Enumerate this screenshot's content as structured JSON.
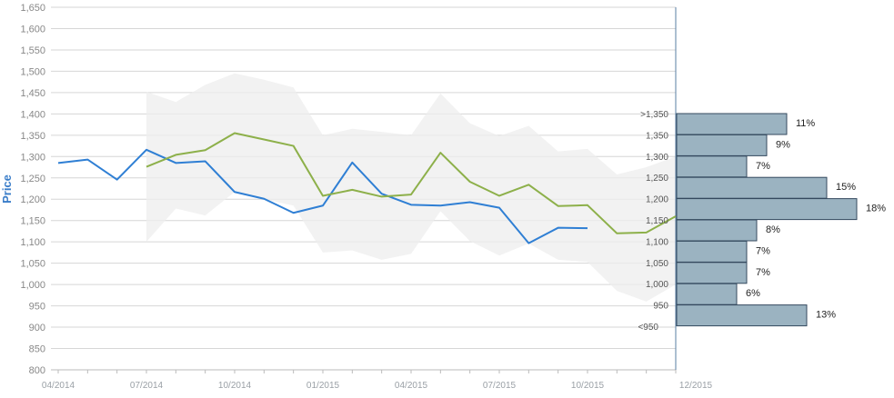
{
  "chart_data": {
    "type": "line",
    "ylabel": "Price",
    "ylim": [
      800,
      1650
    ],
    "y_ticks": [
      "800",
      "850",
      "900",
      "950",
      "1,000",
      "1,050",
      "1,100",
      "1,150",
      "1,200",
      "1,250",
      "1,300",
      "1,350",
      "1,400",
      "1,450",
      "1,500",
      "1,550",
      "1,600",
      "1,650"
    ],
    "x_ticks": [
      "04/2014",
      "07/2014",
      "10/2014",
      "01/2015",
      "04/2015",
      "07/2015",
      "10/2015",
      "12/2015"
    ],
    "series": [
      {
        "color": "#2f7fd4",
        "points": [
          [
            "2014-04-01",
            1285
          ],
          [
            "2014-05-01",
            1293
          ],
          [
            "2014-06-01",
            1246
          ],
          [
            "2014-07-01",
            1316
          ],
          [
            "2014-08-01",
            1285
          ],
          [
            "2014-09-01",
            1289
          ],
          [
            "2014-10-01",
            1217
          ],
          [
            "2014-11-01",
            1201
          ],
          [
            "2014-12-01",
            1168
          ],
          [
            "2015-01-01",
            1185
          ],
          [
            "2015-02-01",
            1286
          ],
          [
            "2015-03-01",
            1213
          ],
          [
            "2015-04-01",
            1187
          ],
          [
            "2015-05-01",
            1185
          ],
          [
            "2015-06-01",
            1193
          ],
          [
            "2015-07-01",
            1180
          ],
          [
            "2015-08-01",
            1097
          ],
          [
            "2015-09-01",
            1133
          ],
          [
            "2015-10-01",
            1132
          ]
        ]
      },
      {
        "color": "#8db04a",
        "points": [
          [
            "2014-07-01",
            1276
          ],
          [
            "2014-08-01",
            1304
          ],
          [
            "2014-09-01",
            1315
          ],
          [
            "2014-10-01",
            1355
          ],
          [
            "2014-11-01",
            1340
          ],
          [
            "2014-12-01",
            1325
          ],
          [
            "2015-01-01",
            1208
          ],
          [
            "2015-02-01",
            1222
          ],
          [
            "2015-03-01",
            1206
          ],
          [
            "2015-04-01",
            1211
          ],
          [
            "2015-05-01",
            1309
          ],
          [
            "2015-06-01",
            1241
          ],
          [
            "2015-07-01",
            1208
          ],
          [
            "2015-08-01",
            1234
          ],
          [
            "2015-09-01",
            1184
          ],
          [
            "2015-10-01",
            1186
          ],
          [
            "2015-11-01",
            1120
          ],
          [
            "2015-12-01",
            1122
          ],
          [
            "2016-01-01",
            1160
          ]
        ]
      }
    ],
    "band": {
      "color": "#eeeeee",
      "upper": [
        [
          "2014-07-01",
          1452
        ],
        [
          "2014-08-01",
          1428
        ],
        [
          "2014-09-01",
          1468
        ],
        [
          "2014-10-01",
          1495
        ],
        [
          "2014-11-01",
          1480
        ],
        [
          "2014-12-01",
          1462
        ],
        [
          "2015-01-01",
          1350
        ],
        [
          "2015-02-01",
          1365
        ],
        [
          "2015-03-01",
          1358
        ],
        [
          "2015-04-01",
          1350
        ],
        [
          "2015-05-01",
          1448
        ],
        [
          "2015-06-01",
          1378
        ],
        [
          "2015-07-01",
          1348
        ],
        [
          "2015-08-01",
          1372
        ],
        [
          "2015-09-01",
          1312
        ],
        [
          "2015-10-01",
          1318
        ],
        [
          "2015-11-01",
          1258
        ],
        [
          "2015-12-01",
          1275
        ],
        [
          "2016-01-01",
          1300
        ]
      ],
      "lower": [
        [
          "2014-07-01",
          1100
        ],
        [
          "2014-08-01",
          1178
        ],
        [
          "2014-09-01",
          1162
        ],
        [
          "2014-10-01",
          1217
        ],
        [
          "2014-11-01",
          1200
        ],
        [
          "2014-12-01",
          1185
        ],
        [
          "2015-01-01",
          1075
        ],
        [
          "2015-02-01",
          1080
        ],
        [
          "2015-03-01",
          1058
        ],
        [
          "2015-04-01",
          1072
        ],
        [
          "2015-05-01",
          1172
        ],
        [
          "2015-06-01",
          1102
        ],
        [
          "2015-07-01",
          1068
        ],
        [
          "2015-08-01",
          1096
        ],
        [
          "2015-09-01",
          1058
        ],
        [
          "2015-10-01",
          1053
        ],
        [
          "2015-11-01",
          985
        ],
        [
          "2015-12-01",
          960
        ],
        [
          "2016-01-01",
          1000
        ]
      ]
    },
    "histogram": {
      "color": "#9bb3c1",
      "bins": [
        {
          "label": ">1,350",
          "pct": "11%",
          "value": 11
        },
        {
          "label": "1,350",
          "pct": "9%",
          "value": 9
        },
        {
          "label": "1,300",
          "pct": "7%",
          "value": 7
        },
        {
          "label": "1,250",
          "pct": "15%",
          "value": 15
        },
        {
          "label": "1,200",
          "pct": "18%",
          "value": 18
        },
        {
          "label": "1,150",
          "pct": "8%",
          "value": 8
        },
        {
          "label": "1,100",
          "pct": "7%",
          "value": 7
        },
        {
          "label": "1,050",
          "pct": "7%",
          "value": 7
        },
        {
          "label": "1,000",
          "pct": "6%",
          "value": 6
        },
        {
          "label": "950",
          "pct": "13%",
          "value": 13
        }
      ],
      "extra_label": "<950",
      "max_value": 18
    }
  }
}
